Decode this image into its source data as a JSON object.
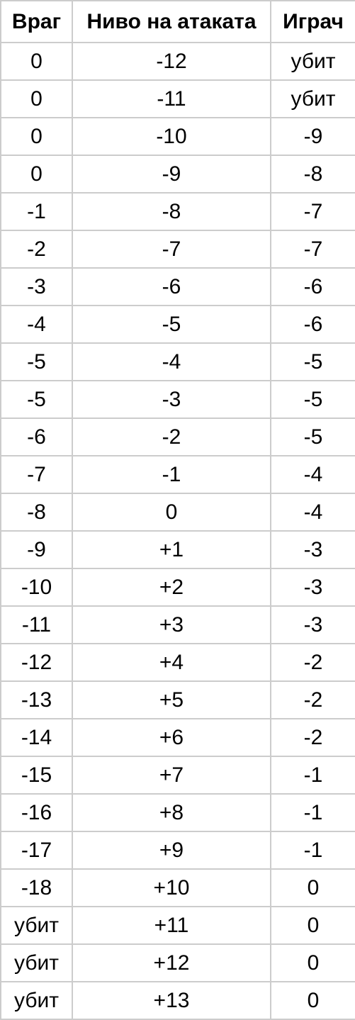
{
  "table": {
    "headers": [
      "Враг",
      "Ниво на атаката",
      "Играч"
    ],
    "rows": [
      [
        "0",
        "-12",
        "убит"
      ],
      [
        "0",
        "-11",
        "убит"
      ],
      [
        "0",
        "-10",
        "-9"
      ],
      [
        "0",
        "-9",
        "-8"
      ],
      [
        "-1",
        "-8",
        "-7"
      ],
      [
        "-2",
        "-7",
        "-7"
      ],
      [
        "-3",
        "-6",
        "-6"
      ],
      [
        "-4",
        "-5",
        "-6"
      ],
      [
        "-5",
        "-4",
        "-5"
      ],
      [
        "-5",
        "-3",
        "-5"
      ],
      [
        "-6",
        "-2",
        "-5"
      ],
      [
        "-7",
        "-1",
        "-4"
      ],
      [
        "-8",
        "0",
        "-4"
      ],
      [
        "-9",
        "+1",
        "-3"
      ],
      [
        "-10",
        "+2",
        "-3"
      ],
      [
        "-11",
        "+3",
        "-3"
      ],
      [
        "-12",
        "+4",
        "-2"
      ],
      [
        "-13",
        "+5",
        "-2"
      ],
      [
        "-14",
        "+6",
        "-2"
      ],
      [
        "-15",
        "+7",
        "-1"
      ],
      [
        "-16",
        "+8",
        "-1"
      ],
      [
        "-17",
        "+9",
        "-1"
      ],
      [
        "-18",
        "+10",
        "0"
      ],
      [
        "убит",
        "+11",
        "0"
      ],
      [
        "убит",
        "+12",
        "0"
      ],
      [
        "убит",
        "+13",
        "0"
      ]
    ]
  }
}
